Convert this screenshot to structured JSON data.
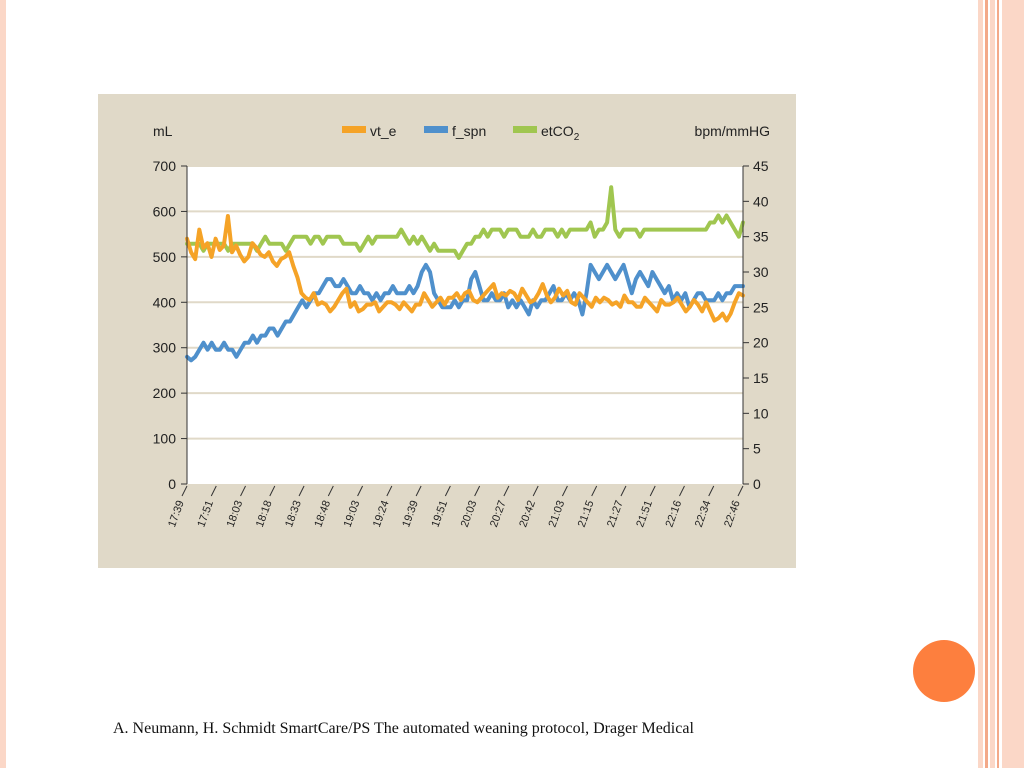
{
  "colors": {
    "slide_background": "#ffffff",
    "stripe_light": "#fbd7c7",
    "stripe_dark": "#f3a989",
    "accent_circle": "#fd7f3e",
    "figure_background": "#e0d9c8",
    "plot_background": "#ffffff",
    "vt_e": "#f5a327",
    "f_spn": "#4f90cc",
    "etco2": "#a0c650"
  },
  "decor": {
    "accent": "orange-circle-icon"
  },
  "citation": {
    "text": "A. Neumann, H. Schmidt SmartCare/PS The automated weaning protocol, Drager Medical"
  },
  "chart_data": {
    "type": "line",
    "left_unit_label": "mL",
    "right_unit_label": "bpm/mmHG",
    "ylim_left": [
      0,
      700
    ],
    "yticks_left": [
      "0",
      "100",
      "200",
      "300",
      "400",
      "500",
      "600",
      "700"
    ],
    "ylim_right": [
      0,
      45
    ],
    "yticks_right": [
      "0",
      "5",
      "10",
      "15",
      "20",
      "25",
      "30",
      "35",
      "40",
      "45"
    ],
    "xtick_labels": [
      "17:39",
      "17:51",
      "18:03",
      "18:18",
      "18:33",
      "18:48",
      "19:03",
      "19:24",
      "19:39",
      "19:51",
      "20:03",
      "20:27",
      "20:42",
      "21:03",
      "21:15",
      "21:27",
      "21:51",
      "22:16",
      "22:34",
      "22:46"
    ],
    "grid": true,
    "legend_position": "top",
    "series": [
      {
        "name": "vt_e",
        "axis": "left",
        "legend_text": "vt_e",
        "values": [
          540,
          510,
          495,
          560,
          520,
          530,
          500,
          540,
          515,
          525,
          590,
          510,
          525,
          505,
          490,
          500,
          530,
          520,
          505,
          500,
          510,
          490,
          480,
          495,
          500,
          510,
          480,
          455,
          420,
          410,
          405,
          420,
          395,
          400,
          395,
          380,
          390,
          405,
          420,
          430,
          390,
          400,
          380,
          385,
          395,
          395,
          400,
          380,
          390,
          400,
          400,
          395,
          385,
          400,
          390,
          380,
          395,
          395,
          420,
          405,
          390,
          400,
          410,
          395,
          410,
          410,
          420,
          405,
          420,
          425,
          405,
          400,
          410,
          420,
          430,
          440,
          410,
          420,
          415,
          425,
          420,
          405,
          430,
          415,
          400,
          405,
          420,
          440,
          415,
          400,
          410,
          430,
          415,
          425,
          400,
          395,
          420,
          410,
          400,
          390,
          410,
          400,
          410,
          405,
          395,
          400,
          390,
          415,
          400,
          400,
          390,
          390,
          410,
          400,
          390,
          380,
          405,
          395,
          395,
          400,
          410,
          395,
          380,
          390,
          405,
          395,
          380,
          400,
          380,
          360,
          365,
          375,
          360,
          375,
          400,
          420,
          415
        ]
      },
      {
        "name": "f_spn",
        "axis": "right",
        "legend_text": "f_spn",
        "values": [
          18,
          17.5,
          18,
          19,
          20,
          19,
          20,
          19,
          19,
          20,
          19,
          19,
          18,
          19,
          20,
          20,
          21,
          20,
          21,
          21,
          22,
          22,
          21,
          22,
          23,
          23,
          24,
          25,
          26,
          25,
          26,
          27,
          27,
          28,
          29,
          29,
          28,
          28,
          29,
          28,
          27,
          27,
          28,
          27,
          27,
          26,
          27,
          26,
          27,
          27,
          28,
          27,
          27,
          27,
          28,
          27,
          28,
          30,
          31,
          30,
          27,
          26,
          25,
          25,
          25,
          26,
          25,
          26,
          26,
          29,
          30,
          28,
          26,
          26,
          27,
          26,
          26,
          27,
          25,
          26,
          25,
          26,
          25,
          24,
          26,
          25,
          26,
          26,
          27,
          28,
          26,
          26,
          27,
          26,
          27,
          26,
          24,
          27,
          31,
          30,
          29,
          30,
          31,
          30,
          29,
          30,
          31,
          29,
          27,
          29,
          30,
          29,
          28,
          30,
          29,
          28,
          27,
          28,
          26,
          27,
          26,
          27,
          25,
          26,
          27,
          27,
          26,
          26,
          26,
          27,
          26,
          27,
          27,
          28,
          28,
          28
        ]
      },
      {
        "name": "etCO2",
        "axis": "right",
        "legend_text": "etCO",
        "legend_subscript": "2",
        "values": [
          34,
          34,
          34,
          34,
          33,
          34,
          34,
          34,
          34,
          34,
          33,
          34,
          34,
          34,
          34,
          34,
          34,
          33,
          34,
          35,
          34,
          34,
          34,
          34,
          33,
          34,
          35,
          35,
          35,
          35,
          34,
          35,
          35,
          34,
          35,
          35,
          35,
          35,
          34,
          34,
          34,
          34,
          33,
          34,
          35,
          34,
          35,
          35,
          35,
          35,
          35,
          35,
          36,
          35,
          34,
          35,
          34,
          35,
          34,
          33,
          34,
          33,
          33,
          33,
          33,
          33,
          32,
          33,
          34,
          34,
          35,
          35,
          36,
          35,
          36,
          36,
          36,
          35,
          36,
          36,
          36,
          35,
          35,
          35,
          36,
          35,
          35,
          36,
          36,
          36,
          35,
          36,
          35,
          36,
          36,
          36,
          36,
          36,
          37,
          35,
          36,
          36,
          37,
          42,
          36,
          35,
          36,
          36,
          36,
          36,
          35,
          36,
          36,
          36,
          36,
          36,
          36,
          36,
          36,
          36,
          36,
          36,
          36,
          36,
          36,
          36,
          36,
          37,
          37,
          38,
          37,
          38,
          37,
          36,
          35,
          37
        ]
      }
    ]
  }
}
